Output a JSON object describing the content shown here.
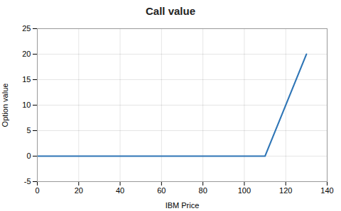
{
  "chart_data": {
    "type": "line",
    "title": "Call value",
    "xlabel": "IBM Price",
    "ylabel": "Option value",
    "x": [
      0,
      110,
      130
    ],
    "values": [
      0,
      0,
      20
    ],
    "color": "#2e75b6",
    "xlim": [
      0,
      140
    ],
    "ylim": [
      -5,
      25
    ],
    "xticks": [
      0,
      20,
      40,
      60,
      80,
      100,
      120,
      140
    ],
    "yticks": [
      -5,
      0,
      5,
      10,
      15,
      20,
      25
    ],
    "grid": true
  }
}
